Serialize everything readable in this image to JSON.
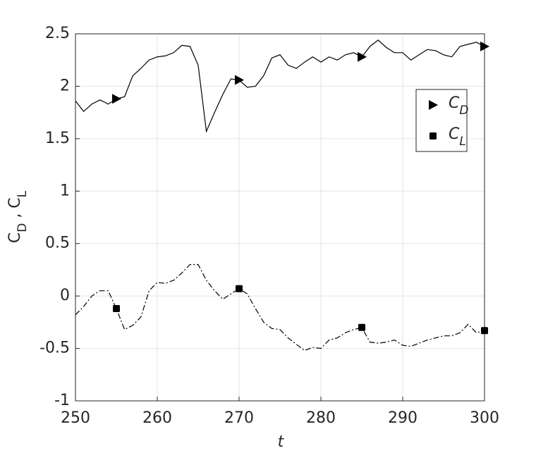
{
  "chart_data": {
    "type": "line",
    "xlabel": "t",
    "ylabel": "C_D , C_L",
    "x": [
      250,
      251,
      252,
      253,
      254,
      255,
      256,
      257,
      258,
      259,
      260,
      261,
      262,
      263,
      264,
      265,
      266,
      267,
      268,
      269,
      270,
      271,
      272,
      273,
      274,
      275,
      276,
      277,
      278,
      279,
      280,
      281,
      282,
      283,
      284,
      285,
      286,
      287,
      288,
      289,
      290,
      291,
      292,
      293,
      294,
      295,
      296,
      297,
      298,
      299,
      300
    ],
    "series": [
      {
        "name": "C_D",
        "color": "#000000",
        "linestyle": "solid",
        "marker": "triangle-right",
        "values": [
          1.86,
          1.76,
          1.83,
          1.87,
          1.83,
          1.88,
          1.9,
          2.1,
          2.17,
          2.25,
          2.28,
          2.29,
          2.32,
          2.39,
          2.38,
          2.2,
          1.57,
          1.75,
          1.92,
          2.07,
          2.06,
          1.99,
          2.0,
          2.1,
          2.27,
          2.3,
          2.2,
          2.17,
          2.23,
          2.28,
          2.23,
          2.28,
          2.25,
          2.3,
          2.32,
          2.28,
          2.38,
          2.44,
          2.37,
          2.32,
          2.32,
          2.25,
          2.3,
          2.35,
          2.34,
          2.3,
          2.28,
          2.38,
          2.4,
          2.42,
          2.38
        ]
      },
      {
        "name": "C_L",
        "color": "#000000",
        "linestyle": "dashdot",
        "marker": "square",
        "values": [
          -0.18,
          -0.1,
          0.0,
          0.05,
          0.05,
          -0.12,
          -0.32,
          -0.28,
          -0.2,
          0.05,
          0.13,
          0.12,
          0.15,
          0.22,
          0.3,
          0.3,
          0.15,
          0.05,
          -0.03,
          0.02,
          0.07,
          0.02,
          -0.12,
          -0.25,
          -0.31,
          -0.32,
          -0.4,
          -0.46,
          -0.52,
          -0.49,
          -0.5,
          -0.42,
          -0.4,
          -0.35,
          -0.32,
          -0.3,
          -0.44,
          -0.45,
          -0.44,
          -0.42,
          -0.47,
          -0.48,
          -0.45,
          -0.42,
          -0.4,
          -0.38,
          -0.38,
          -0.35,
          -0.27,
          -0.35,
          -0.33
        ]
      }
    ],
    "markstart": 5,
    "markevery": 15,
    "xlim": [
      250,
      300
    ],
    "xticks": [
      250,
      260,
      270,
      280,
      290,
      300
    ],
    "ylim": [
      -1,
      2.5
    ],
    "yticks": [
      -1,
      -0.5,
      0,
      0.5,
      1,
      1.5,
      2,
      2.5
    ],
    "grid": true,
    "legend": "upper right"
  }
}
